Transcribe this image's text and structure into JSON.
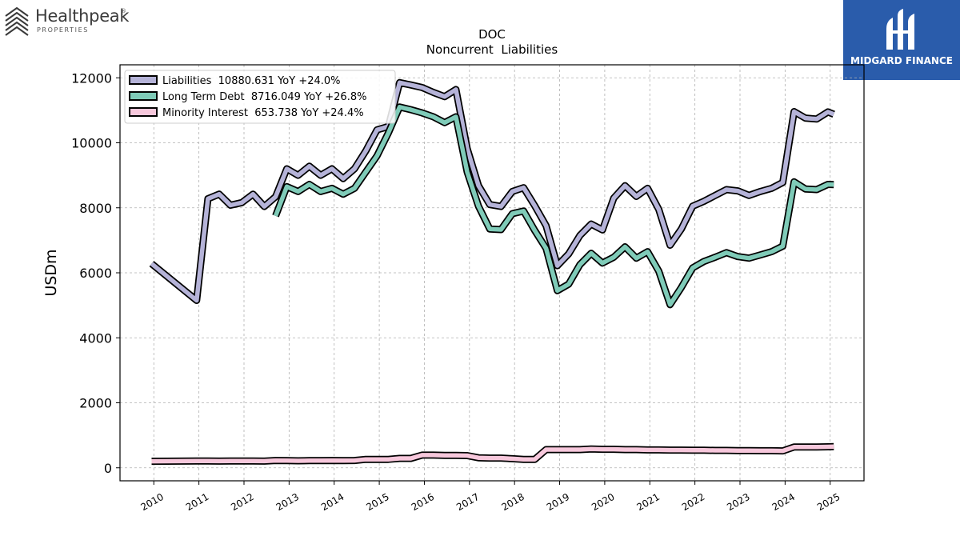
{
  "brand": {
    "name": "Healthpeak",
    "sub": "PROPERTIES",
    "reg": "®"
  },
  "partner": {
    "name": "MIDGARD FINANCE"
  },
  "colors": {
    "liabilities": "#b5b3d8",
    "long_term_debt": "#7fcbb8",
    "minority_interest": "#f7c8dc",
    "outline": "#000000"
  },
  "chart_data": {
    "type": "line",
    "title": "DOC",
    "subtitle": "Noncurrent  Liabilities",
    "ylabel": "USDm",
    "xlabel": "",
    "ylim": [
      -400,
      12400
    ],
    "xlim": [
      2009.25,
      2025.75
    ],
    "yticks": [
      0,
      2000,
      4000,
      6000,
      8000,
      10000,
      12000
    ],
    "xticks": [
      "2010",
      "2011",
      "2012",
      "2013",
      "2014",
      "2015",
      "2016",
      "2017",
      "2018",
      "2019",
      "2020",
      "2021",
      "2022",
      "2023",
      "2024",
      "2025"
    ],
    "grid": true,
    "legend_position": "top-left",
    "series": [
      {
        "name": "Liabilities  10880.631 YoY +24.0%",
        "color_key": "liabilities",
        "x": [
          2009.95,
          2010.95,
          2011.2,
          2011.45,
          2011.7,
          2011.95,
          2012.2,
          2012.45,
          2012.7,
          2012.95,
          2013.2,
          2013.45,
          2013.7,
          2013.95,
          2014.2,
          2014.45,
          2014.7,
          2014.95,
          2015.2,
          2015.45,
          2015.7,
          2015.95,
          2016.2,
          2016.45,
          2016.7,
          2016.95,
          2017.2,
          2017.45,
          2017.7,
          2017.95,
          2018.2,
          2018.45,
          2018.7,
          2018.95,
          2019.2,
          2019.45,
          2019.7,
          2019.95,
          2020.2,
          2020.45,
          2020.7,
          2020.95,
          2021.2,
          2021.45,
          2021.7,
          2021.95,
          2022.2,
          2022.45,
          2022.7,
          2022.95,
          2023.2,
          2023.45,
          2023.7,
          2023.95,
          2024.2,
          2024.45,
          2024.7,
          2024.95,
          2025.08
        ],
        "values": [
          6280,
          5150,
          8280,
          8420,
          8080,
          8160,
          8420,
          8040,
          8340,
          9200,
          9000,
          9280,
          9000,
          9200,
          8900,
          9200,
          9750,
          10400,
          10500,
          11850,
          11780,
          11700,
          11550,
          11420,
          11640,
          9820,
          8680,
          8100,
          8040,
          8500,
          8620,
          8060,
          7450,
          6220,
          6580,
          7150,
          7500,
          7320,
          8300,
          8680,
          8350,
          8600,
          7950,
          6850,
          7350,
          8050,
          8200,
          8380,
          8560,
          8520,
          8380,
          8500,
          8600,
          8780,
          10960,
          10760,
          10730,
          10950,
          10880
        ]
      },
      {
        "name": "Long Term Debt  8716.049 YoY +26.8%",
        "color_key": "long_term_debt",
        "x": [
          2012.7,
          2012.95,
          2013.2,
          2013.45,
          2013.7,
          2013.95,
          2014.2,
          2014.45,
          2014.7,
          2014.95,
          2015.2,
          2015.45,
          2015.7,
          2015.95,
          2016.2,
          2016.45,
          2016.7,
          2016.95,
          2017.2,
          2017.45,
          2017.7,
          2017.95,
          2018.2,
          2018.45,
          2018.7,
          2018.95,
          2019.2,
          2019.45,
          2019.7,
          2019.95,
          2020.2,
          2020.45,
          2020.7,
          2020.95,
          2021.2,
          2021.45,
          2021.7,
          2021.95,
          2022.2,
          2022.45,
          2022.7,
          2022.95,
          2023.2,
          2023.45,
          2023.7,
          2023.95,
          2024.2,
          2024.45,
          2024.7,
          2024.95,
          2025.08
        ],
        "values": [
          7750,
          8650,
          8500,
          8720,
          8500,
          8600,
          8420,
          8600,
          9100,
          9600,
          10300,
          11100,
          11020,
          10920,
          10800,
          10620,
          10800,
          9100,
          8050,
          7350,
          7330,
          7820,
          7900,
          7300,
          6750,
          5450,
          5650,
          6250,
          6600,
          6300,
          6480,
          6800,
          6450,
          6650,
          6050,
          5020,
          5550,
          6150,
          6350,
          6480,
          6620,
          6500,
          6450,
          6550,
          6650,
          6820,
          8800,
          8580,
          8560,
          8720,
          8716
        ]
      },
      {
        "name": "Minority Interest  653.738 YoY +24.4%",
        "color_key": "minority_interest",
        "x": [
          2009.95,
          2010.95,
          2011.2,
          2011.45,
          2011.7,
          2011.95,
          2012.2,
          2012.45,
          2012.7,
          2012.95,
          2013.2,
          2013.45,
          2013.7,
          2013.95,
          2014.2,
          2014.45,
          2014.7,
          2014.95,
          2015.2,
          2015.45,
          2015.7,
          2015.95,
          2016.2,
          2016.45,
          2016.7,
          2016.95,
          2017.2,
          2017.45,
          2017.7,
          2017.95,
          2018.2,
          2018.45,
          2018.7,
          2018.95,
          2019.2,
          2019.45,
          2019.7,
          2019.95,
          2020.2,
          2020.45,
          2020.7,
          2020.95,
          2021.2,
          2021.45,
          2021.7,
          2021.95,
          2022.2,
          2022.45,
          2022.7,
          2022.95,
          2023.2,
          2023.45,
          2023.7,
          2023.95,
          2024.2,
          2024.45,
          2024.7,
          2024.95,
          2025.08
        ],
        "values": [
          200,
          210,
          210,
          205,
          210,
          210,
          210,
          205,
          225,
          220,
          215,
          220,
          220,
          225,
          220,
          225,
          260,
          260,
          260,
          290,
          290,
          390,
          390,
          380,
          380,
          375,
          310,
          300,
          300,
          280,
          260,
          260,
          560,
          560,
          560,
          560,
          580,
          570,
          570,
          560,
          560,
          550,
          550,
          545,
          545,
          540,
          540,
          535,
          535,
          530,
          530,
          525,
          525,
          520,
          640,
          640,
          640,
          645,
          654
        ]
      }
    ]
  }
}
